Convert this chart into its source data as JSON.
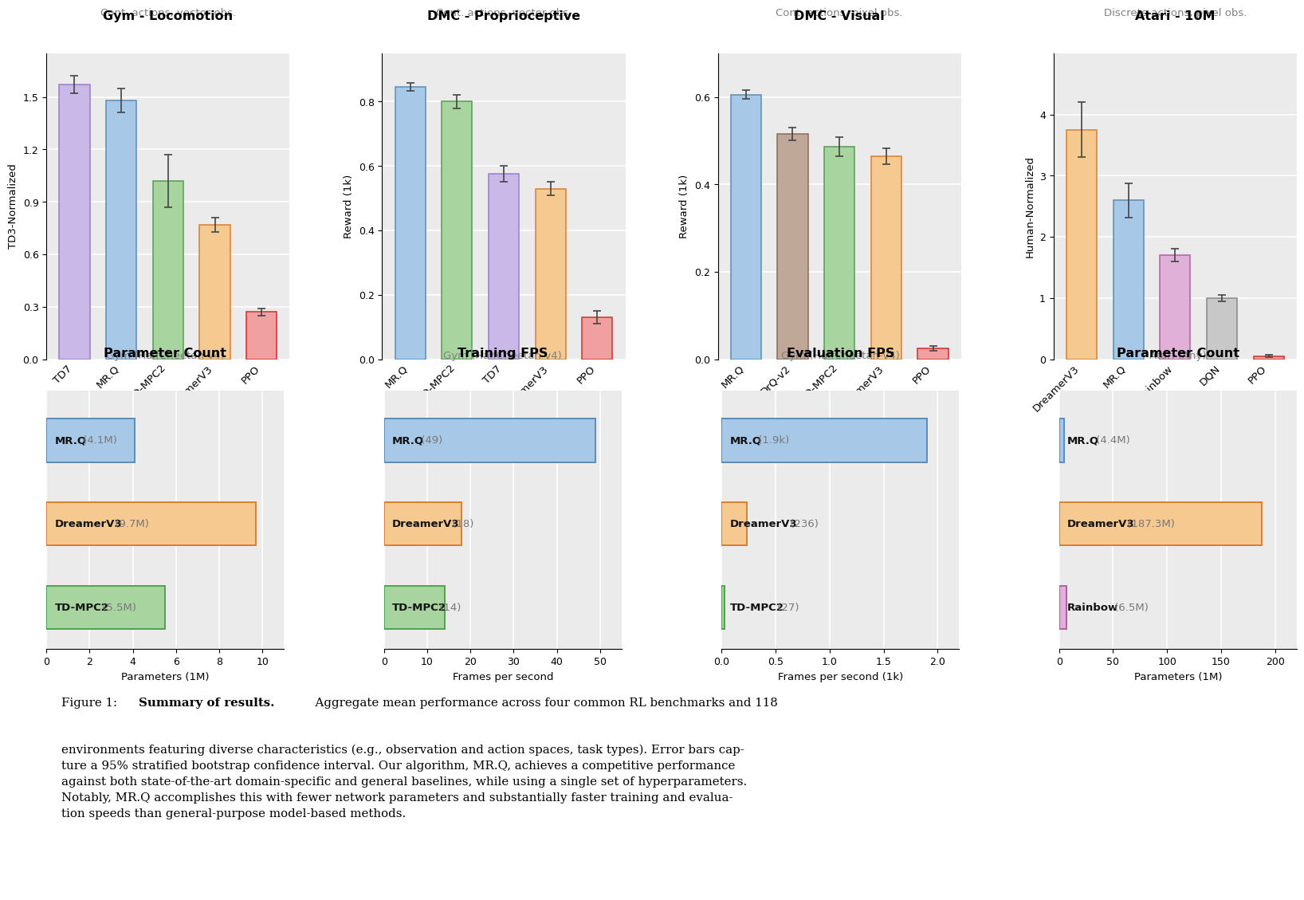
{
  "top_plots": [
    {
      "title": "Gym - Locomotion",
      "subtitle": "Cont. actions, vector obs.",
      "ylabel": "TD3-Normalized",
      "bars": [
        {
          "label": "TD7",
          "value": 1.57,
          "err": 0.05,
          "color": "#c9b8e8",
          "edgecolor": "#9a7ec8"
        },
        {
          "label": "MR.Q",
          "value": 1.48,
          "err": 0.07,
          "color": "#a8c8e8",
          "edgecolor": "#5b8db8"
        },
        {
          "label": "TD-MPC2",
          "value": 1.02,
          "err": 0.15,
          "color": "#a8d4a0",
          "edgecolor": "#50a050"
        },
        {
          "label": "DreamerV3",
          "value": 0.77,
          "err": 0.04,
          "color": "#f5c990",
          "edgecolor": "#d88030"
        },
        {
          "label": "PPO",
          "value": 0.27,
          "err": 0.02,
          "color": "#f0a0a0",
          "edgecolor": "#d03030"
        }
      ],
      "ylim": [
        0.0,
        1.75
      ],
      "yticks": [
        0.0,
        0.3,
        0.6,
        0.9,
        1.2,
        1.5
      ]
    },
    {
      "title": "DMC - Proprioceptive",
      "subtitle": "Cont. actions, vector obs.",
      "ylabel": "Reward (1k)",
      "bars": [
        {
          "label": "MR.Q",
          "value": 0.845,
          "err": 0.012,
          "color": "#a8c8e8",
          "edgecolor": "#5b8db8"
        },
        {
          "label": "TD-MPC2",
          "value": 0.8,
          "err": 0.022,
          "color": "#a8d4a0",
          "edgecolor": "#50a050"
        },
        {
          "label": "TD7",
          "value": 0.575,
          "err": 0.025,
          "color": "#c9b8e8",
          "edgecolor": "#9a7ec8"
        },
        {
          "label": "DreamerV3",
          "value": 0.53,
          "err": 0.02,
          "color": "#f5c990",
          "edgecolor": "#d88030"
        },
        {
          "label": "PPO",
          "value": 0.13,
          "err": 0.02,
          "color": "#f0a0a0",
          "edgecolor": "#d03030"
        }
      ],
      "ylim": [
        0.0,
        0.95
      ],
      "yticks": [
        0.0,
        0.2,
        0.4,
        0.6,
        0.8
      ]
    },
    {
      "title": "DMC - Visual",
      "subtitle": "Cont. actions, pixel obs.",
      "ylabel": "Reward (1k)",
      "bars": [
        {
          "label": "MR.Q",
          "value": 0.605,
          "err": 0.01,
          "color": "#a8c8e8",
          "edgecolor": "#5b8db8"
        },
        {
          "label": "DrQ-v2",
          "value": 0.515,
          "err": 0.015,
          "color": "#c0a898",
          "edgecolor": "#906858"
        },
        {
          "label": "TD-MPC2",
          "value": 0.487,
          "err": 0.022,
          "color": "#a8d4a0",
          "edgecolor": "#50a050"
        },
        {
          "label": "DreamerV3",
          "value": 0.465,
          "err": 0.018,
          "color": "#f5c990",
          "edgecolor": "#d88030"
        },
        {
          "label": "PPO",
          "value": 0.025,
          "err": 0.005,
          "color": "#f0a0a0",
          "edgecolor": "#d03030"
        }
      ],
      "ylim": [
        0.0,
        0.7
      ],
      "yticks": [
        0.0,
        0.2,
        0.4,
        0.6
      ]
    },
    {
      "title": "Atari - 10M",
      "subtitle": "Discrete actions, pixel obs.",
      "ylabel": "Human-Normalized",
      "bars": [
        {
          "label": "DreamerV3",
          "value": 3.75,
          "err": 0.45,
          "color": "#f5c990",
          "edgecolor": "#d88030"
        },
        {
          "label": "MR.Q",
          "value": 2.6,
          "err": 0.28,
          "color": "#a8c8e8",
          "edgecolor": "#5b8db8"
        },
        {
          "label": "Rainbow",
          "value": 1.7,
          "err": 0.1,
          "color": "#e0b0d8",
          "edgecolor": "#b060a0"
        },
        {
          "label": "DQN",
          "value": 1.0,
          "err": 0.05,
          "color": "#c8c8c8",
          "edgecolor": "#888888"
        },
        {
          "label": "PPO",
          "value": 0.05,
          "err": 0.02,
          "color": "#f0a0a0",
          "edgecolor": "#d03030"
        }
      ],
      "ylim": [
        0.0,
        5.0
      ],
      "yticks": [
        0.0,
        1.0,
        2.0,
        3.0,
        4.0
      ]
    }
  ],
  "bottom_plots": [
    {
      "title": "Parameter Count",
      "subtitle": "Gym (HalfCheetah-v4)",
      "xlabel": "Parameters (1M)",
      "bars": [
        {
          "label": "MR.Q",
          "value": 4.1,
          "label_val": "4.1M",
          "color": "#a8c8e8",
          "edgecolor": "#5b8db8"
        },
        {
          "label": "DreamerV3",
          "value": 9.7,
          "label_val": "9.7M",
          "color": "#f5c990",
          "edgecolor": "#d88030"
        },
        {
          "label": "TD-MPC2",
          "value": 5.5,
          "label_val": "5.5M",
          "color": "#a8d4a0",
          "edgecolor": "#50a050"
        }
      ],
      "xlim": [
        0,
        11
      ],
      "xticks": [
        0,
        2,
        4,
        6,
        8,
        10
      ]
    },
    {
      "title": "Training FPS",
      "subtitle": "Gym (HalfCheetah-v4)",
      "xlabel": "Frames per second",
      "bars": [
        {
          "label": "MR.Q",
          "value": 49,
          "label_val": "49",
          "color": "#a8c8e8",
          "edgecolor": "#5b8db8"
        },
        {
          "label": "DreamerV3",
          "value": 18,
          "label_val": "18",
          "color": "#f5c990",
          "edgecolor": "#d88030"
        },
        {
          "label": "TD-MPC2",
          "value": 14,
          "label_val": "14",
          "color": "#a8d4a0",
          "edgecolor": "#50a050"
        }
      ],
      "xlim": [
        0,
        55
      ],
      "xticks": [
        0,
        10,
        20,
        30,
        40,
        50
      ]
    },
    {
      "title": "Evaluation FPS",
      "subtitle": "Gym (HalfCheetah-v4)",
      "xlabel": "Frames per second (1k)",
      "bars": [
        {
          "label": "MR.Q",
          "value": 1.9,
          "label_val": "1.9k",
          "color": "#a8c8e8",
          "edgecolor": "#5b8db8"
        },
        {
          "label": "DreamerV3",
          "value": 0.236,
          "label_val": "236",
          "color": "#f5c990",
          "edgecolor": "#d88030"
        },
        {
          "label": "TD-MPC2",
          "value": 0.027,
          "label_val": "27",
          "color": "#a8d4a0",
          "edgecolor": "#50a050"
        }
      ],
      "xlim": [
        0,
        2.2
      ],
      "xticks": [
        0.0,
        0.5,
        1.0,
        1.5,
        2.0
      ]
    },
    {
      "title": "Parameter Count",
      "subtitle": "Atari (Any)",
      "xlabel": "Parameters (1M)",
      "bars": [
        {
          "label": "MR.Q",
          "value": 4.4,
          "label_val": "4.4M",
          "color": "#a8c8e8",
          "edgecolor": "#5b8db8"
        },
        {
          "label": "DreamerV3",
          "value": 187.3,
          "label_val": "187.3M",
          "color": "#f5c990",
          "edgecolor": "#d88030"
        },
        {
          "label": "Rainbow",
          "value": 6.5,
          "label_val": "6.5M",
          "color": "#e0b0d8",
          "edgecolor": "#b060a0"
        }
      ],
      "xlim": [
        0,
        220
      ],
      "xticks": [
        0,
        50,
        100,
        150,
        200
      ]
    }
  ],
  "bg_color": "#ebebeb",
  "fig_bg": "#ffffff"
}
